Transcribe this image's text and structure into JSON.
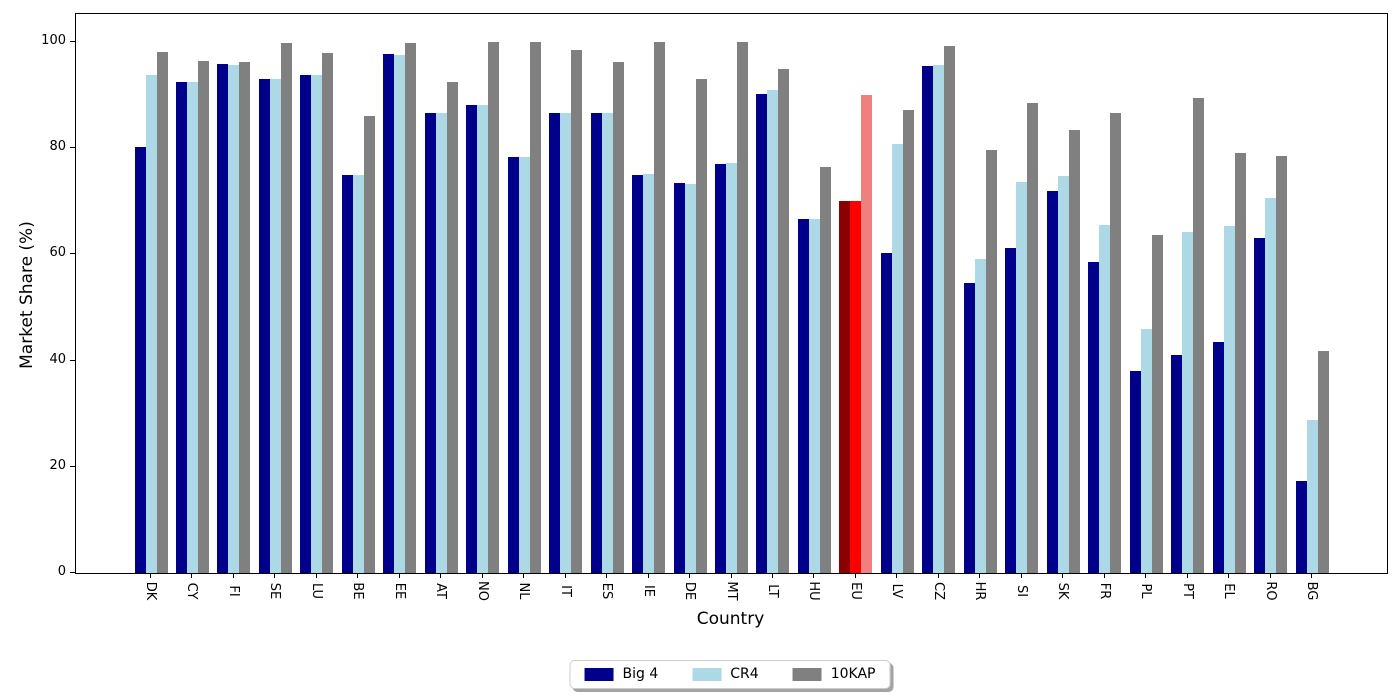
{
  "chart_data": {
    "type": "bar",
    "title": "",
    "xlabel": "Country",
    "ylabel": "Market Share (%)",
    "categories": [
      "DK",
      "CY",
      "FI",
      "SE",
      "LU",
      "BE",
      "EE",
      "AT",
      "NO",
      "NL",
      "IT",
      "ES",
      "IE",
      "DE",
      "MT",
      "LT",
      "HU",
      "EU",
      "LV",
      "CZ",
      "HR",
      "SI",
      "SK",
      "FR",
      "PL",
      "PT",
      "EL",
      "RO",
      "BG"
    ],
    "series": [
      {
        "name": "Big 4",
        "color": "#00008B",
        "values": [
          80.2,
          92.5,
          95.8,
          93.1,
          93.9,
          74.9,
          97.7,
          86.7,
          88.2,
          78.4,
          86.7,
          86.7,
          74.9,
          73.4,
          77.1,
          90.2,
          66.7,
          70.0,
          60.3,
          95.5,
          54.6,
          61.3,
          72.0,
          58.5,
          38.0,
          41.0,
          43.5,
          63.1,
          17.4
        ]
      },
      {
        "name": "CR4",
        "color": "#ADD8E6",
        "values": [
          93.9,
          92.5,
          95.7,
          93.1,
          93.8,
          74.9,
          97.6,
          86.7,
          88.2,
          78.4,
          86.7,
          86.7,
          75.2,
          73.3,
          77.2,
          91.0,
          66.6,
          70.0,
          80.9,
          95.7,
          59.2,
          73.6,
          74.8,
          65.5,
          45.9,
          64.2,
          65.4,
          70.7,
          28.9
        ]
      },
      {
        "name": "10KAP",
        "color": "#808080",
        "values": [
          98.2,
          96.5,
          96.2,
          99.8,
          98.0,
          86.0,
          99.9,
          92.5,
          100.0,
          100.0,
          98.5,
          96.3,
          100.0,
          93.0,
          100.0,
          94.9,
          76.4,
          90.0,
          87.3,
          99.2,
          79.6,
          88.5,
          83.4,
          86.7,
          63.7,
          89.4,
          79.2,
          78.5,
          41.9
        ]
      }
    ],
    "highlight": {
      "category": "EU",
      "colors": [
        "#8B0000",
        "#FF0000",
        "#F08080"
      ]
    },
    "yticks": [
      0,
      20,
      40,
      60,
      80,
      100
    ],
    "ylim": [
      0,
      105.3
    ],
    "grid": false,
    "legend_position": "bottom-center",
    "legend_labels": [
      "Big 4",
      "CR4",
      "10KAP"
    ]
  }
}
